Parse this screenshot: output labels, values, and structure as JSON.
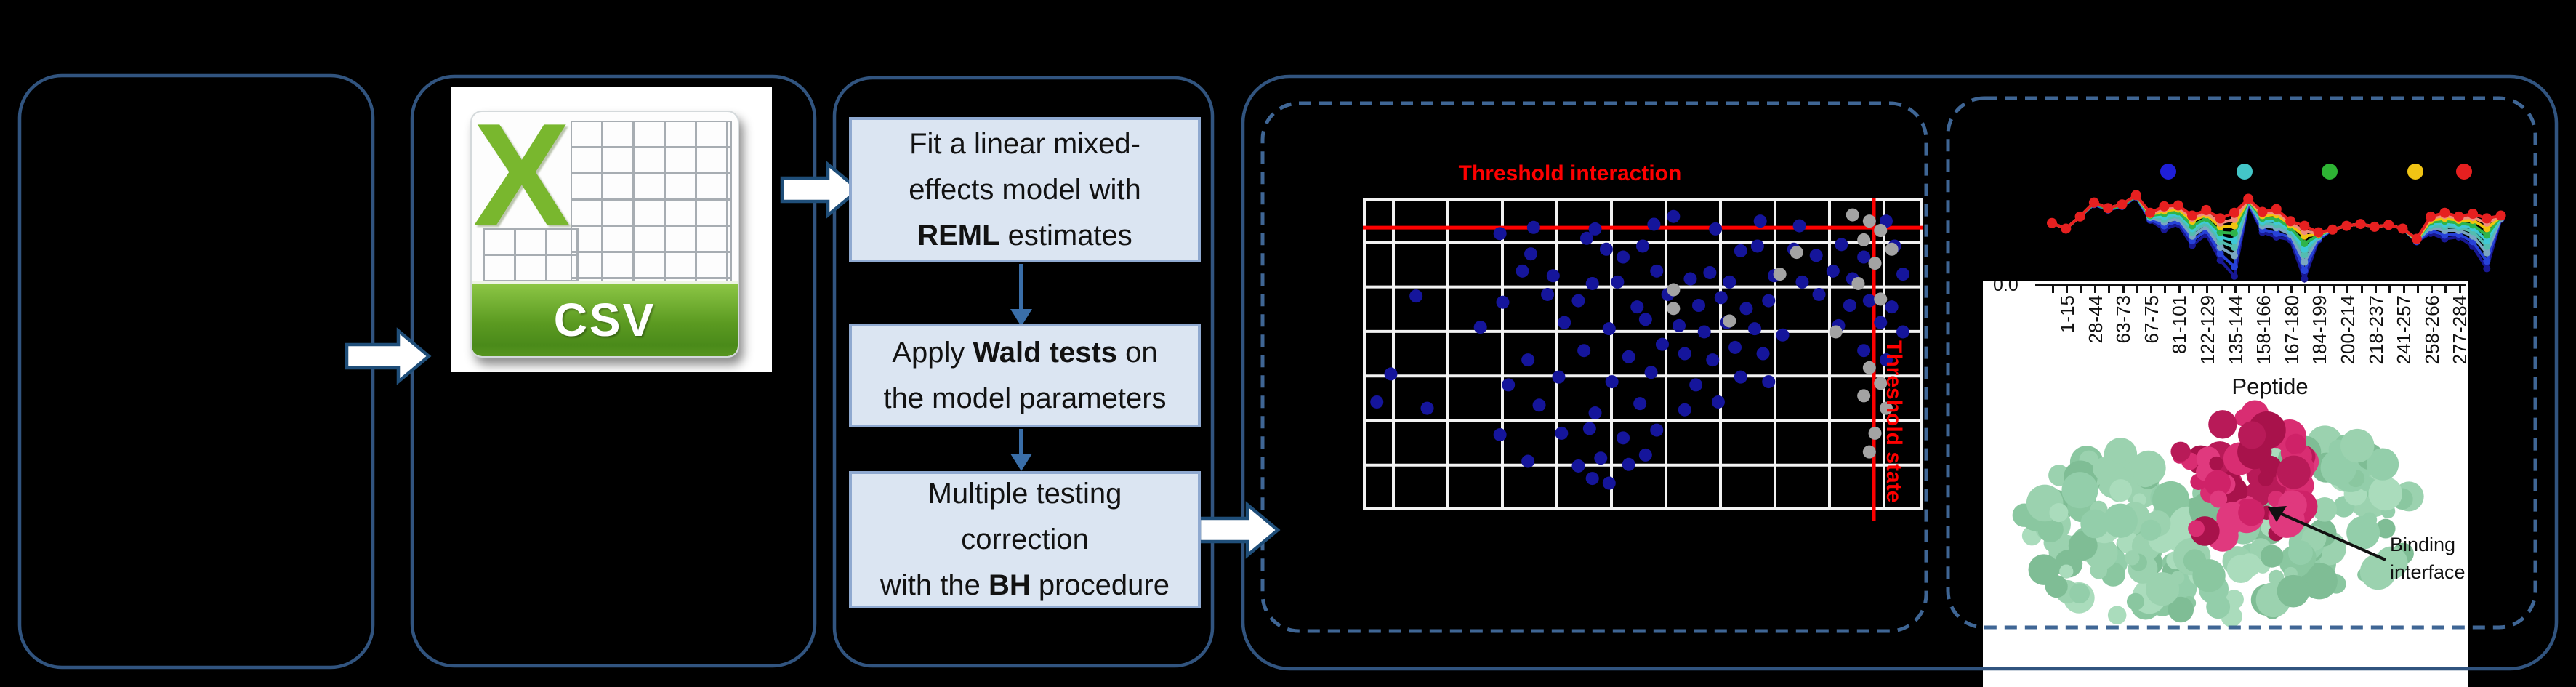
{
  "colors": {
    "background": "#000000",
    "panel_border": "#31547f",
    "dashed_border": "#3f6695",
    "block_arrow_fill": "#ffffff",
    "block_arrow_outline": "#1f4e79",
    "box_fill": "#dbe5f2",
    "box_border": "#8fa9d0",
    "flow_arrow": "#3a6ea8",
    "threshold_red": "#fe0000",
    "grid_white": "#f2f2f2",
    "csv_green": "#79b72e",
    "protein_green": "#9bd2af",
    "protein_crimson": "#cf2268"
  },
  "csv": {
    "letter": "X",
    "label": "CSV"
  },
  "pipeline": {
    "boxes": [
      {
        "lines": [
          [
            {
              "t": "Fit a linear mixed-"
            }
          ],
          [
            {
              "t": "effects model with"
            }
          ],
          [
            {
              "t": "REML",
              "b": true
            },
            {
              "t": " estimates"
            }
          ]
        ]
      },
      {
        "lines": [
          [
            {
              "t": "Apply "
            },
            {
              "t": "Wald tests",
              "b": true
            },
            {
              "t": " on"
            }
          ],
          [
            {
              "t": "the model parameters"
            }
          ]
        ]
      },
      {
        "lines": [
          [
            {
              "t": "Multiple testing"
            }
          ],
          [
            {
              "t": "correction"
            }
          ],
          [
            {
              "t": "with the "
            },
            {
              "t": "BH",
              "b": true
            },
            {
              "t": " procedure"
            }
          ]
        ]
      }
    ]
  },
  "uptake_labels": {
    "xlabel": "Peptide",
    "ytick": "0.0",
    "binding_line1": "Binding",
    "binding_line2": "interface"
  },
  "chart_data": [
    {
      "type": "scatter",
      "title": "Threshold interaction",
      "threshold_state_label": "Threshold state",
      "grid": "white gridlines on black, 10 columns x 7 rows",
      "threshold_interaction_y_frac": 0.096,
      "threshold_state_x_frac": 0.913,
      "series": [
        {
          "name": "blue-points",
          "color": "#15159b",
          "points": [
            [
              0.245,
              0.115
            ],
            [
              0.305,
              0.095
            ],
            [
              0.415,
              0.1
            ],
            [
              0.52,
              0.085
            ],
            [
              0.63,
              0.1
            ],
            [
              0.71,
              0.075
            ],
            [
              0.555,
              0.06
            ],
            [
              0.78,
              0.09
            ],
            [
              0.935,
              0.075
            ],
            [
              0.4,
              0.13
            ],
            [
              0.435,
              0.165
            ],
            [
              0.465,
              0.19
            ],
            [
              0.5,
              0.155
            ],
            [
              0.675,
              0.17
            ],
            [
              0.705,
              0.155
            ],
            [
              0.77,
              0.165
            ],
            [
              0.81,
              0.185
            ],
            [
              0.855,
              0.15
            ],
            [
              0.895,
              0.19
            ],
            [
              0.95,
              0.155
            ],
            [
              0.3,
              0.18
            ],
            [
              0.285,
              0.235
            ],
            [
              0.34,
              0.25
            ],
            [
              0.455,
              0.27
            ],
            [
              0.525,
              0.235
            ],
            [
              0.585,
              0.26
            ],
            [
              0.62,
              0.24
            ],
            [
              0.655,
              0.27
            ],
            [
              0.735,
              0.25
            ],
            [
              0.785,
              0.27
            ],
            [
              0.84,
              0.235
            ],
            [
              0.875,
              0.26
            ],
            [
              0.965,
              0.245
            ],
            [
              0.41,
              0.275
            ],
            [
              0.33,
              0.31
            ],
            [
              0.385,
              0.33
            ],
            [
              0.49,
              0.35
            ],
            [
              0.545,
              0.31
            ],
            [
              0.6,
              0.345
            ],
            [
              0.64,
              0.32
            ],
            [
              0.685,
              0.355
            ],
            [
              0.725,
              0.33
            ],
            [
              0.815,
              0.31
            ],
            [
              0.87,
              0.345
            ],
            [
              0.905,
              0.33
            ],
            [
              0.945,
              0.35
            ],
            [
              0.25,
              0.335
            ],
            [
              0.095,
              0.315
            ],
            [
              0.36,
              0.4
            ],
            [
              0.44,
              0.42
            ],
            [
              0.505,
              0.39
            ],
            [
              0.565,
              0.41
            ],
            [
              0.61,
              0.43
            ],
            [
              0.65,
              0.4
            ],
            [
              0.7,
              0.42
            ],
            [
              0.75,
              0.44
            ],
            [
              0.85,
              0.41
            ],
            [
              0.925,
              0.4
            ],
            [
              0.965,
              0.43
            ],
            [
              0.21,
              0.415
            ],
            [
              0.395,
              0.49
            ],
            [
              0.475,
              0.51
            ],
            [
              0.535,
              0.47
            ],
            [
              0.575,
              0.5
            ],
            [
              0.625,
              0.52
            ],
            [
              0.665,
              0.48
            ],
            [
              0.715,
              0.5
            ],
            [
              0.295,
              0.52
            ],
            [
              0.895,
              0.49
            ],
            [
              0.935,
              0.52
            ],
            [
              0.35,
              0.575
            ],
            [
              0.445,
              0.59
            ],
            [
              0.515,
              0.56
            ],
            [
              0.595,
              0.6
            ],
            [
              0.675,
              0.575
            ],
            [
              0.725,
              0.59
            ],
            [
              0.05,
              0.565
            ],
            [
              0.26,
              0.6
            ],
            [
              0.315,
              0.665
            ],
            [
              0.415,
              0.69
            ],
            [
              0.495,
              0.66
            ],
            [
              0.575,
              0.68
            ],
            [
              0.635,
              0.655
            ],
            [
              0.115,
              0.675
            ],
            [
              0.025,
              0.655
            ],
            [
              0.355,
              0.755
            ],
            [
              0.465,
              0.77
            ],
            [
              0.525,
              0.745
            ],
            [
              0.245,
              0.76
            ],
            [
              0.405,
              0.74
            ],
            [
              0.425,
              0.835
            ],
            [
              0.475,
              0.855
            ],
            [
              0.505,
              0.825
            ],
            [
              0.385,
              0.86
            ],
            [
              0.295,
              0.845
            ],
            [
              0.41,
              0.9
            ],
            [
              0.44,
              0.915
            ]
          ]
        },
        {
          "name": "gray-points",
          "color": "#a3a3a3",
          "points": [
            [
              0.875,
              0.055
            ],
            [
              0.905,
              0.075
            ],
            [
              0.925,
              0.105
            ],
            [
              0.895,
              0.135
            ],
            [
              0.945,
              0.165
            ],
            [
              0.915,
              0.21
            ],
            [
              0.885,
              0.275
            ],
            [
              0.925,
              0.325
            ],
            [
              0.555,
              0.295
            ],
            [
              0.555,
              0.355
            ],
            [
              0.655,
              0.395
            ],
            [
              0.745,
              0.245
            ],
            [
              0.775,
              0.175
            ],
            [
              0.905,
              0.545
            ],
            [
              0.925,
              0.595
            ],
            [
              0.895,
              0.635
            ],
            [
              0.935,
              0.675
            ],
            [
              0.915,
              0.755
            ],
            [
              0.905,
              0.815
            ],
            [
              0.845,
              0.43
            ]
          ]
        }
      ]
    },
    {
      "type": "line",
      "xlabel": "Peptide",
      "ytick_labels": [
        "0.0"
      ],
      "categories": [
        "1-15",
        "28-44",
        "63-73",
        "67-75",
        "81-101",
        "122-129",
        "135-144",
        "158-166",
        "167-180",
        "184-199",
        "200-214",
        "218-237",
        "241-257",
        "258-266",
        "277-284"
      ],
      "legend": {
        "position": "top",
        "dot_colors": [
          "#1f1fd8",
          "#43c6c8",
          "#2eb434",
          "#f0c414",
          "#e62020"
        ]
      },
      "n_points": 33,
      "y_unit": "fraction-from-top-of-plot",
      "series": [
        {
          "name": "navy",
          "color": "#181894",
          "values": [
            0.35,
            0.41,
            0.28,
            0.15,
            0.21,
            0.17,
            0.07,
            0.32,
            0.42,
            0.36,
            0.59,
            0.47,
            0.75,
            0.92,
            0.14,
            0.45,
            0.5,
            0.53,
            0.95,
            0.53,
            0.42,
            0.38,
            0.36,
            0.39,
            0.37,
            0.41,
            0.55,
            0.46,
            0.52,
            0.5,
            0.6,
            0.84,
            0.31
          ]
        },
        {
          "name": "blue",
          "color": "#2742d8",
          "values": [
            0.35,
            0.41,
            0.28,
            0.15,
            0.21,
            0.17,
            0.07,
            0.31,
            0.38,
            0.33,
            0.54,
            0.43,
            0.68,
            0.82,
            0.13,
            0.42,
            0.46,
            0.5,
            0.86,
            0.52,
            0.42,
            0.38,
            0.36,
            0.39,
            0.37,
            0.41,
            0.55,
            0.43,
            0.48,
            0.47,
            0.55,
            0.76,
            0.3
          ]
        },
        {
          "name": "steel",
          "color": "#7aa6c2",
          "values": [
            0.35,
            0.41,
            0.28,
            0.14,
            0.2,
            0.16,
            0.06,
            0.29,
            0.34,
            0.3,
            0.49,
            0.39,
            0.61,
            0.7,
            0.12,
            0.38,
            0.4,
            0.47,
            0.77,
            0.5,
            0.42,
            0.38,
            0.36,
            0.39,
            0.37,
            0.41,
            0.54,
            0.4,
            0.43,
            0.43,
            0.49,
            0.67,
            0.3
          ]
        },
        {
          "name": "teal",
          "color": "#53bdb0",
          "values": [
            0.35,
            0.41,
            0.28,
            0.14,
            0.2,
            0.16,
            0.06,
            0.28,
            0.31,
            0.27,
            0.45,
            0.35,
            0.55,
            0.61,
            0.12,
            0.35,
            0.37,
            0.44,
            0.69,
            0.49,
            0.42,
            0.38,
            0.36,
            0.39,
            0.37,
            0.41,
            0.54,
            0.38,
            0.39,
            0.4,
            0.44,
            0.6,
            0.29
          ]
        },
        {
          "name": "cyan",
          "color": "#3ec9d6",
          "values": [
            0.35,
            0.41,
            0.28,
            0.14,
            0.2,
            0.16,
            0.06,
            0.28,
            0.28,
            0.25,
            0.41,
            0.32,
            0.5,
            0.54,
            0.11,
            0.33,
            0.33,
            0.42,
            0.63,
            0.49,
            0.42,
            0.38,
            0.36,
            0.39,
            0.37,
            0.41,
            0.53,
            0.36,
            0.36,
            0.38,
            0.4,
            0.54,
            0.29
          ]
        },
        {
          "name": "green",
          "color": "#2eb44a",
          "values": [
            0.35,
            0.41,
            0.28,
            0.14,
            0.2,
            0.16,
            0.06,
            0.27,
            0.25,
            0.23,
            0.38,
            0.3,
            0.45,
            0.46,
            0.11,
            0.3,
            0.3,
            0.4,
            0.57,
            0.48,
            0.42,
            0.38,
            0.36,
            0.39,
            0.37,
            0.41,
            0.53,
            0.34,
            0.33,
            0.35,
            0.37,
            0.48,
            0.28
          ]
        },
        {
          "name": "yellow",
          "color": "#f1c40f",
          "values": [
            0.35,
            0.41,
            0.28,
            0.13,
            0.19,
            0.15,
            0.05,
            0.26,
            0.22,
            0.2,
            0.33,
            0.26,
            0.39,
            0.38,
            0.1,
            0.27,
            0.26,
            0.37,
            0.49,
            0.47,
            0.42,
            0.38,
            0.36,
            0.39,
            0.37,
            0.41,
            0.53,
            0.32,
            0.3,
            0.32,
            0.32,
            0.41,
            0.28
          ]
        },
        {
          "name": "salmon",
          "color": "#ef8d7c",
          "values": [
            0.35,
            0.41,
            0.28,
            0.13,
            0.19,
            0.15,
            0.05,
            0.25,
            0.2,
            0.18,
            0.3,
            0.24,
            0.35,
            0.31,
            0.1,
            0.25,
            0.23,
            0.35,
            0.44,
            0.46,
            0.42,
            0.38,
            0.36,
            0.39,
            0.37,
            0.41,
            0.52,
            0.3,
            0.27,
            0.3,
            0.29,
            0.35,
            0.28
          ]
        },
        {
          "name": "red",
          "color": "#e62020",
          "values": [
            0.35,
            0.41,
            0.28,
            0.13,
            0.19,
            0.15,
            0.05,
            0.24,
            0.17,
            0.16,
            0.27,
            0.21,
            0.3,
            0.24,
            0.09,
            0.23,
            0.2,
            0.33,
            0.38,
            0.45,
            0.42,
            0.38,
            0.36,
            0.39,
            0.37,
            0.41,
            0.52,
            0.28,
            0.24,
            0.28,
            0.25,
            0.3,
            0.27
          ]
        }
      ]
    }
  ]
}
